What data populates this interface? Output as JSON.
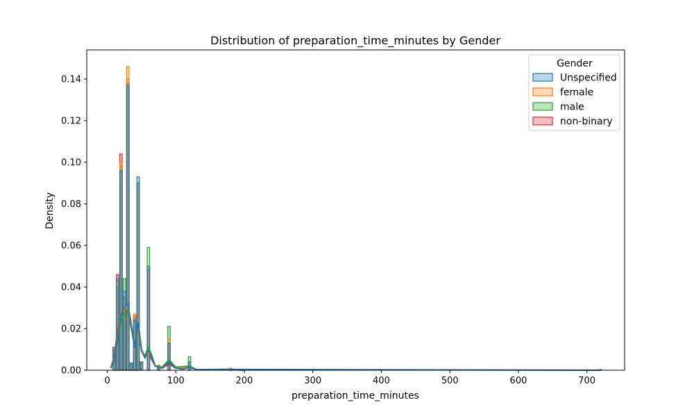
{
  "chart_data": {
    "type": "histogram",
    "title": "Distribution of preparation_time_minutes by Gender",
    "xlabel": "preparation_time_minutes",
    "ylabel": "Density",
    "xlim": [
      -30,
      755
    ],
    "ylim": [
      0,
      0.154
    ],
    "x_ticks": [
      0,
      100,
      200,
      300,
      400,
      500,
      600,
      700
    ],
    "y_ticks": [
      0.0,
      0.02,
      0.04,
      0.06,
      0.08,
      0.1,
      0.12,
      0.14
    ],
    "y_tick_labels": [
      "0.00",
      "0.02",
      "0.04",
      "0.06",
      "0.08",
      "0.10",
      "0.12",
      "0.14"
    ],
    "bin_width": 3.6,
    "legend": {
      "title": "Gender",
      "placement": "upper right"
    },
    "series": [
      {
        "name": "Unspecified",
        "color": "#1f77b4",
        "bins": [
          [
            10,
            0.011
          ],
          [
            15,
            0.044
          ],
          [
            20,
            0.096
          ],
          [
            25,
            0.038
          ],
          [
            30,
            0.137
          ],
          [
            35,
            0.0035
          ],
          [
            40,
            0.024
          ],
          [
            45,
            0.093
          ],
          [
            50,
            0.004
          ],
          [
            60,
            0.05
          ],
          [
            75,
            0.0015
          ],
          [
            90,
            0.013
          ],
          [
            120,
            0.004
          ],
          [
            180,
            0.0005
          ],
          [
            240,
            0.0003
          ],
          [
            720,
            0.0003
          ]
        ],
        "kde": [
          [
            5,
            0.001
          ],
          [
            10,
            0.005
          ],
          [
            15,
            0.016
          ],
          [
            20,
            0.027
          ],
          [
            25,
            0.03
          ],
          [
            30,
            0.032
          ],
          [
            35,
            0.022
          ],
          [
            40,
            0.011
          ],
          [
            45,
            0.023
          ],
          [
            50,
            0.01
          ],
          [
            55,
            0.006
          ],
          [
            60,
            0.01
          ],
          [
            65,
            0.006
          ],
          [
            70,
            0.002
          ],
          [
            80,
            0.001
          ],
          [
            90,
            0.004
          ],
          [
            100,
            0.001
          ],
          [
            110,
            0.0005
          ],
          [
            120,
            0.0015
          ],
          [
            130,
            0.0003
          ],
          [
            180,
            0.0004
          ],
          [
            720,
            0.0
          ]
        ]
      },
      {
        "name": "female",
        "color": "#ff7f0e",
        "bins": [
          [
            10,
            0.009
          ],
          [
            15,
            0.043
          ],
          [
            20,
            0.1
          ],
          [
            25,
            0.03
          ],
          [
            30,
            0.146
          ],
          [
            35,
            0.003
          ],
          [
            40,
            0.027
          ],
          [
            45,
            0.088
          ],
          [
            50,
            0.004
          ],
          [
            60,
            0.05
          ],
          [
            75,
            0.0025
          ],
          [
            90,
            0.015
          ],
          [
            120,
            0.004
          ],
          [
            180,
            0.001
          ]
        ],
        "kde": [
          [
            5,
            0.001
          ],
          [
            10,
            0.006
          ],
          [
            15,
            0.017
          ],
          [
            20,
            0.028
          ],
          [
            25,
            0.029
          ],
          [
            30,
            0.031
          ],
          [
            35,
            0.021
          ],
          [
            40,
            0.012
          ],
          [
            45,
            0.022
          ],
          [
            50,
            0.009
          ],
          [
            55,
            0.006
          ],
          [
            60,
            0.009
          ],
          [
            65,
            0.006
          ],
          [
            70,
            0.002
          ],
          [
            80,
            0.001
          ],
          [
            90,
            0.004
          ],
          [
            100,
            0.001
          ],
          [
            120,
            0.0015
          ],
          [
            130,
            0.0003
          ],
          [
            180,
            0.0005
          ],
          [
            200,
            0.0
          ]
        ]
      },
      {
        "name": "male",
        "color": "#2ca02c",
        "bins": [
          [
            10,
            0.01
          ],
          [
            15,
            0.04
          ],
          [
            20,
            0.098
          ],
          [
            25,
            0.044
          ],
          [
            30,
            0.14
          ],
          [
            35,
            0.003
          ],
          [
            40,
            0.025
          ],
          [
            45,
            0.09
          ],
          [
            50,
            0.003
          ],
          [
            60,
            0.059
          ],
          [
            75,
            0.002
          ],
          [
            90,
            0.021
          ],
          [
            120,
            0.0065
          ],
          [
            180,
            0.0005
          ]
        ],
        "kde": [
          [
            5,
            0.001
          ],
          [
            10,
            0.005
          ],
          [
            15,
            0.014
          ],
          [
            20,
            0.024
          ],
          [
            25,
            0.027
          ],
          [
            30,
            0.029
          ],
          [
            35,
            0.02
          ],
          [
            40,
            0.011
          ],
          [
            45,
            0.021
          ],
          [
            50,
            0.009
          ],
          [
            55,
            0.007
          ],
          [
            60,
            0.011
          ],
          [
            65,
            0.007
          ],
          [
            70,
            0.002
          ],
          [
            80,
            0.0015
          ],
          [
            90,
            0.005
          ],
          [
            100,
            0.0015
          ],
          [
            120,
            0.002
          ],
          [
            130,
            0.0004
          ],
          [
            180,
            0.0003
          ],
          [
            200,
            0.0
          ]
        ]
      },
      {
        "name": "non-binary",
        "color": "#d62728",
        "bins": [
          [
            10,
            0.011
          ],
          [
            15,
            0.046
          ],
          [
            20,
            0.104
          ],
          [
            25,
            0.035
          ],
          [
            30,
            0.138
          ],
          [
            35,
            0.003
          ],
          [
            40,
            0.026
          ],
          [
            45,
            0.09
          ],
          [
            50,
            0.004
          ],
          [
            60,
            0.048
          ],
          [
            75,
            0.002
          ],
          [
            90,
            0.013
          ],
          [
            120,
            0.004
          ],
          [
            180,
            0.0008
          ]
        ],
        "kde": [
          [
            5,
            0.001
          ],
          [
            10,
            0.007
          ],
          [
            15,
            0.019
          ],
          [
            20,
            0.028
          ],
          [
            25,
            0.029
          ],
          [
            30,
            0.028
          ],
          [
            35,
            0.02
          ],
          [
            40,
            0.012
          ],
          [
            45,
            0.021
          ],
          [
            50,
            0.009
          ],
          [
            55,
            0.006
          ],
          [
            60,
            0.009
          ],
          [
            65,
            0.005
          ],
          [
            70,
            0.002
          ],
          [
            80,
            0.001
          ],
          [
            90,
            0.003
          ],
          [
            100,
            0.001
          ],
          [
            120,
            0.0015
          ],
          [
            130,
            0.0003
          ],
          [
            180,
            0.0004
          ],
          [
            200,
            0.0
          ]
        ]
      }
    ]
  }
}
